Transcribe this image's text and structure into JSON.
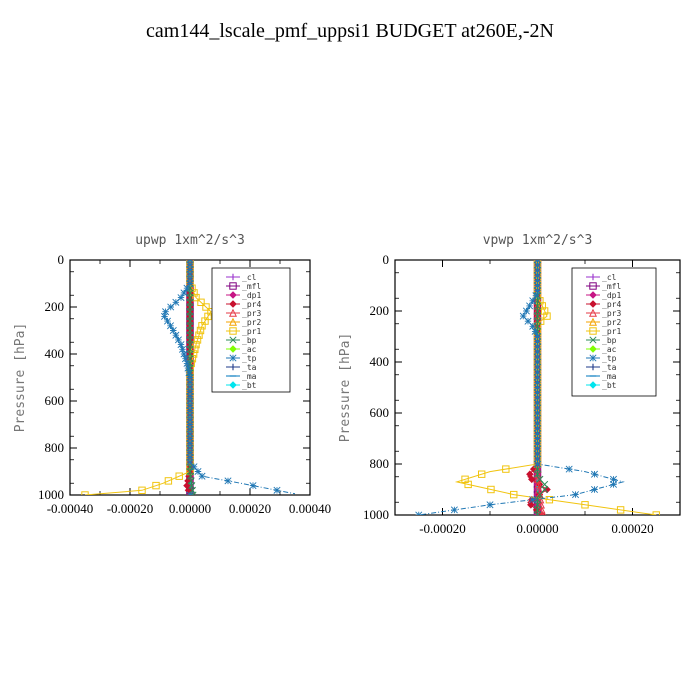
{
  "page": {
    "title": "cam144_lscale_pmf_uppsi1  BUDGET at260E,-2N"
  },
  "chart_data": [
    {
      "type": "line",
      "title": "upwp   1xm^2/s^3",
      "ylabel": "Pressure [hPa]",
      "xlim": [
        -0.0004,
        0.0004
      ],
      "ylim": [
        1000,
        0
      ],
      "xticks": [
        -0.0004,
        -0.0002,
        0.0,
        0.0002,
        0.0004
      ],
      "xtick_labels": [
        "-0.00040",
        "-0.00020",
        "0.00000",
        "0.00020",
        "0.00040"
      ],
      "yticks": [
        0,
        200,
        400,
        600,
        800,
        1000
      ],
      "ytick_labels": [
        "0",
        "200",
        "400",
        "600",
        "800",
        "1000"
      ],
      "legend_position": "top-right",
      "series": [
        {
          "name": "_cl",
          "color": "#9932cc",
          "marker": "plus",
          "points": [
            [
              0,
              0
            ],
            [
              0,
              200
            ],
            [
              0,
              400
            ],
            [
              0,
              600
            ],
            [
              0,
              800
            ],
            [
              0,
              1000
            ]
          ]
        },
        {
          "name": "_mfl",
          "color": "#800080",
          "marker": "square",
          "points": [
            [
              0,
              0
            ],
            [
              0,
              200
            ],
            [
              0,
              400
            ],
            [
              0,
              600
            ],
            [
              0,
              800
            ],
            [
              0,
              1000
            ]
          ]
        },
        {
          "name": "_dp1",
          "color": "#c71585",
          "marker": "diamond",
          "points": [
            [
              0,
              0
            ],
            [
              0,
              200
            ],
            [
              0,
              400
            ],
            [
              0,
              600
            ],
            [
              0,
              800
            ],
            [
              0,
              1000
            ]
          ]
        },
        {
          "name": "_pr4",
          "color": "#c8102e",
          "marker": "diamond",
          "points": [
            [
              0,
              0
            ],
            [
              0,
              200
            ],
            [
              0,
              600
            ],
            [
              0,
              900
            ],
            [
              -1e-05,
              960
            ],
            [
              0,
              1000
            ]
          ]
        },
        {
          "name": "_pr3",
          "color": "#e63946",
          "marker": "triangle",
          "points": [
            [
              0,
              0
            ],
            [
              0,
              300
            ],
            [
              0,
              800
            ],
            [
              0,
              1000
            ]
          ]
        },
        {
          "name": "_pr2",
          "color": "#f4a300",
          "marker": "triangle",
          "points": [
            [
              0,
              0
            ],
            [
              0,
              800
            ],
            [
              0,
              1000
            ]
          ]
        },
        {
          "name": "_pr1",
          "color": "#f1c40f",
          "marker": "square",
          "points": [
            [
              0,
              0
            ],
            [
              0,
              100
            ],
            [
              2e-05,
              160
            ],
            [
              7e-05,
              220
            ],
            [
              4e-05,
              280
            ],
            [
              2e-05,
              360
            ],
            [
              0,
              460
            ],
            [
              0,
              900
            ],
            [
              -9e-05,
              950
            ],
            [
              -0.00016,
              980
            ],
            [
              -0.00035,
              1000
            ]
          ]
        },
        {
          "name": "_bp",
          "color": "#2e8b57",
          "marker": "cross",
          "points": [
            [
              0,
              0
            ],
            [
              0,
              900
            ],
            [
              1e-05,
              1000
            ]
          ]
        },
        {
          "name": "_ac",
          "color": "#7fff00",
          "marker": "diamond",
          "points": [
            [
              0,
              0
            ],
            [
              0,
              1000
            ]
          ]
        },
        {
          "name": "_tp",
          "color": "#1f77b4",
          "marker": "star",
          "points": [
            [
              0,
              0
            ],
            [
              0,
              100
            ],
            [
              -3e-05,
              160
            ],
            [
              -9e-05,
              230
            ],
            [
              -6e-05,
              290
            ],
            [
              -3e-05,
              360
            ],
            [
              -1e-05,
              440
            ],
            [
              0,
              500
            ],
            [
              0,
              860
            ],
            [
              4e-05,
              920
            ],
            [
              0.00017,
              950
            ],
            [
              0.00035,
              995
            ]
          ]
        },
        {
          "name": "_ta",
          "color": "#1e3a8a",
          "marker": "plus",
          "points": [
            [
              0,
              0
            ],
            [
              0,
              1000
            ]
          ]
        },
        {
          "name": "_ma",
          "color": "#0077be",
          "marker": "dash",
          "points": [
            [
              0,
              0
            ],
            [
              0,
              1000
            ]
          ]
        },
        {
          "name": "_bt",
          "color": "#00e5ee",
          "marker": "diamond",
          "points": [
            [
              0,
              0
            ],
            [
              0,
              1000
            ]
          ]
        }
      ]
    },
    {
      "type": "line",
      "title": "vpwp   1xm^2/s^3",
      "ylabel": "Pressure [hPa]",
      "xlim": [
        -0.0003,
        0.0003
      ],
      "ylim": [
        1000,
        0
      ],
      "xticks": [
        -0.0002,
        0.0,
        0.0002
      ],
      "xtick_labels": [
        "-0.00020",
        "0.00000",
        "0.00020"
      ],
      "yticks": [
        0,
        200,
        400,
        600,
        800,
        1000
      ],
      "ytick_labels": [
        "0",
        "200",
        "400",
        "600",
        "800",
        "1000"
      ],
      "legend_position": "top-right",
      "series": [
        {
          "name": "_cl",
          "color": "#9932cc",
          "marker": "plus",
          "points": [
            [
              0,
              0
            ],
            [
              0,
              200
            ],
            [
              0,
              400
            ],
            [
              0,
              600
            ],
            [
              0,
              800
            ],
            [
              0,
              1000
            ]
          ]
        },
        {
          "name": "_mfl",
          "color": "#800080",
          "marker": "square",
          "points": [
            [
              0,
              0
            ],
            [
              0,
              200
            ],
            [
              0,
              400
            ],
            [
              0,
              600
            ],
            [
              0,
              800
            ],
            [
              0,
              1000
            ]
          ]
        },
        {
          "name": "_dp1",
          "color": "#c71585",
          "marker": "diamond",
          "points": [
            [
              0,
              0
            ],
            [
              0,
              200
            ],
            [
              0,
              400
            ],
            [
              0,
              600
            ],
            [
              0,
              800
            ],
            [
              0,
              1000
            ]
          ]
        },
        {
          "name": "_pr4",
          "color": "#c8102e",
          "marker": "diamond",
          "points": [
            [
              0,
              0
            ],
            [
              0,
              800
            ],
            [
              -2e-05,
              850
            ],
            [
              2e-05,
              900
            ],
            [
              -2e-05,
              950
            ],
            [
              1e-05,
              1000
            ]
          ]
        },
        {
          "name": "_pr3",
          "color": "#e63946",
          "marker": "triangle",
          "points": [
            [
              0,
              0
            ],
            [
              0,
              850
            ],
            [
              1e-05,
              1000
            ]
          ]
        },
        {
          "name": "_pr2",
          "color": "#f4a300",
          "marker": "triangle",
          "points": [
            [
              0,
              0
            ],
            [
              0,
              1000
            ]
          ]
        },
        {
          "name": "_pr1",
          "color": "#f1c40f",
          "marker": "square",
          "points": [
            [
              0,
              0
            ],
            [
              0,
              140
            ],
            [
              1e-05,
              180
            ],
            [
              2e-05,
              220
            ],
            [
              0,
              250
            ],
            [
              0,
              800
            ],
            [
              -0.0001,
              830
            ],
            [
              -0.00017,
              870
            ],
            [
              -5e-05,
              920
            ],
            [
              0.0001,
              960
            ],
            [
              0.00025,
              1000
            ]
          ]
        },
        {
          "name": "_bp",
          "color": "#2e8b57",
          "marker": "cross",
          "points": [
            [
              0,
              0
            ],
            [
              0,
              850
            ],
            [
              2e-05,
              890
            ],
            [
              0,
              930
            ],
            [
              0,
              1000
            ]
          ]
        },
        {
          "name": "_ac",
          "color": "#7fff00",
          "marker": "diamond",
          "points": [
            [
              0,
              0
            ],
            [
              0,
              1000
            ]
          ]
        },
        {
          "name": "_tp",
          "color": "#1f77b4",
          "marker": "star",
          "points": [
            [
              0,
              0
            ],
            [
              0,
              130
            ],
            [
              -1e-05,
              160
            ],
            [
              -3e-05,
              220
            ],
            [
              -1e-05,
              260
            ],
            [
              0,
              300
            ],
            [
              0,
              800
            ],
            [
              0.0001,
              830
            ],
            [
              0.00018,
              870
            ],
            [
              8e-05,
              920
            ],
            [
              -0.0001,
              960
            ],
            [
              -0.00025,
              1000
            ]
          ]
        },
        {
          "name": "_ta",
          "color": "#1e3a8a",
          "marker": "plus",
          "points": [
            [
              0,
              0
            ],
            [
              0,
              1000
            ]
          ]
        },
        {
          "name": "_ma",
          "color": "#0077be",
          "marker": "dash",
          "points": [
            [
              0,
              0
            ],
            [
              0,
              1000
            ]
          ]
        },
        {
          "name": "_bt",
          "color": "#00e5ee",
          "marker": "diamond",
          "points": [
            [
              0,
              0
            ],
            [
              0,
              1000
            ]
          ]
        }
      ]
    }
  ]
}
